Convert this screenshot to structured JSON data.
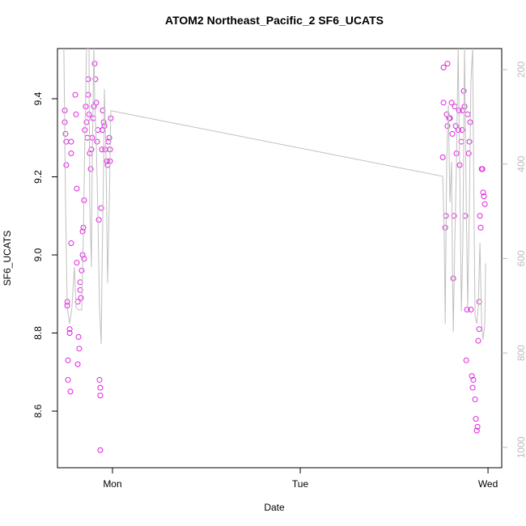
{
  "chart_data": {
    "type": "scatter",
    "title": "ATOM2 Northeast_Pacific_2 SF6_UCATS",
    "xlabel": "Date",
    "ylabel": "SF6_UCATS",
    "xlim": [
      -0.293,
      2.073
    ],
    "xticks": [
      {
        "value": 0,
        "label": "Mon"
      },
      {
        "value": 1,
        "label": "Tue"
      },
      {
        "value": 2,
        "label": "Wed"
      }
    ],
    "ylim": [
      8.455,
      9.5285
    ],
    "yticks": [
      8.6,
      8.8,
      {
        "value": 9,
        "label": "9.0"
      },
      9.2,
      9.4
    ],
    "y2lim": [
      1043,
      155.5
    ],
    "y2ticks": [
      200,
      400,
      600,
      800,
      1000
    ],
    "series": [
      {
        "type": "scatter",
        "color": "#e020e0",
        "x": [
          -0.254,
          -0.254,
          -0.25,
          -0.246,
          -0.246,
          -0.241,
          -0.241,
          -0.237,
          -0.237,
          -0.228,
          -0.228,
          -0.224,
          -0.22,
          -0.22,
          -0.22,
          -0.198,
          -0.194,
          -0.19,
          -0.19,
          -0.185,
          -0.185,
          -0.181,
          -0.177,
          -0.172,
          -0.172,
          -0.168,
          -0.164,
          -0.159,
          -0.155,
          -0.159,
          -0.151,
          -0.151,
          -0.147,
          -0.142,
          -0.138,
          -0.134,
          -0.129,
          -0.129,
          -0.125,
          -0.121,
          -0.116,
          -0.112,
          -0.108,
          -0.103,
          -0.099,
          -0.095,
          -0.091,
          -0.086,
          -0.082,
          -0.078,
          -0.073,
          -0.069,
          -0.065,
          -0.065,
          -0.065,
          -0.06,
          -0.056,
          -0.052,
          -0.052,
          -0.047,
          -0.043,
          -0.039,
          -0.03,
          -0.026,
          -0.022,
          -0.017,
          -0.013,
          -0.013,
          -0.009,
          1.759,
          1.763,
          1.763,
          1.772,
          1.776,
          1.78,
          1.784,
          1.784,
          1.793,
          1.797,
          1.806,
          1.81,
          1.815,
          1.819,
          1.823,
          1.828,
          1.832,
          1.841,
          1.845,
          1.849,
          1.858,
          1.862,
          1.866,
          1.871,
          1.875,
          1.879,
          1.884,
          1.888,
          1.892,
          1.897,
          1.901,
          1.905,
          1.909,
          1.914,
          1.918,
          1.922,
          1.931,
          1.935,
          1.94,
          1.944,
          1.948,
          1.953,
          1.953,
          1.957,
          1.961,
          1.966,
          1.97,
          1.974,
          1.978,
          1.983
        ],
        "values": [
          9.37,
          9.34,
          9.31,
          9.29,
          9.23,
          8.88,
          8.87,
          8.73,
          8.68,
          8.8,
          8.81,
          8.65,
          9.03,
          9.26,
          9.29,
          9.41,
          9.36,
          9.17,
          8.98,
          8.88,
          8.72,
          8.79,
          8.76,
          8.93,
          8.91,
          8.89,
          8.96,
          9.06,
          9.07,
          9.0,
          8.99,
          9.14,
          9.32,
          9.38,
          9.34,
          9.3,
          9.45,
          9.41,
          9.36,
          9.26,
          9.22,
          9.27,
          9.3,
          9.35,
          9.38,
          9.49,
          9.45,
          9.39,
          9.29,
          9.32,
          9.09,
          8.68,
          8.66,
          8.64,
          8.5,
          9.12,
          9.27,
          9.32,
          9.37,
          9.34,
          9.33,
          9.27,
          9.24,
          9.23,
          9.29,
          9.3,
          9.27,
          9.24,
          9.35,
          9.25,
          9.39,
          9.48,
          9.07,
          9.1,
          9.36,
          9.49,
          9.33,
          9.35,
          9.35,
          9.39,
          9.31,
          8.94,
          9.1,
          9.38,
          9.33,
          9.26,
          9.32,
          9.37,
          9.23,
          9.29,
          9.32,
          9.37,
          9.42,
          9.38,
          9.1,
          8.73,
          8.86,
          9.36,
          9.26,
          9.29,
          9.34,
          8.86,
          8.69,
          8.66,
          8.68,
          8.63,
          8.58,
          8.55,
          8.56,
          8.78,
          8.81,
          8.88,
          9.1,
          9.07,
          9.22,
          9.22,
          9.16,
          9.15,
          9.13
        ]
      },
      {
        "type": "line",
        "color": "#c0c0c0",
        "axis": "y2",
        "x": [
          -0.259,
          -0.25,
          -0.241,
          -0.228,
          -0.216,
          -0.203,
          -0.194,
          -0.181,
          -0.164,
          -0.155,
          -0.147,
          -0.138,
          -0.125,
          -0.121,
          -0.112,
          -0.108,
          -0.099,
          -0.095,
          -0.086,
          -0.078,
          -0.069,
          -0.06,
          -0.056,
          -0.047,
          -0.043,
          -0.034,
          -0.026,
          -0.017,
          -0.009,
          1.759,
          1.767,
          1.772,
          1.776,
          1.78,
          1.789,
          1.797,
          1.806,
          1.81,
          1.815,
          1.823,
          1.832,
          1.841,
          1.849,
          1.858,
          1.866,
          1.875,
          1.884,
          1.892,
          1.901,
          1.909,
          1.918,
          1.927,
          1.931,
          1.94,
          1.948,
          1.957,
          1.966,
          1.974,
          1.983,
          1.987
        ],
        "values": [
          155,
          481,
          704,
          738,
          704,
          618,
          704,
          709,
          709,
          549,
          344,
          155,
          155,
          481,
          618,
          395,
          155,
          258,
          361,
          498,
          704,
          781,
          635,
          395,
          241,
          395,
          652,
          481,
          287,
          426,
          549,
          738,
          567,
          395,
          275,
          481,
          395,
          601,
          755,
          567,
          395,
          155,
          395,
          712,
          567,
          155,
          481,
          704,
          481,
          224,
          155,
          567,
          721,
          738,
          704,
          567,
          738,
          772,
          738,
          610
        ]
      }
    ]
  }
}
